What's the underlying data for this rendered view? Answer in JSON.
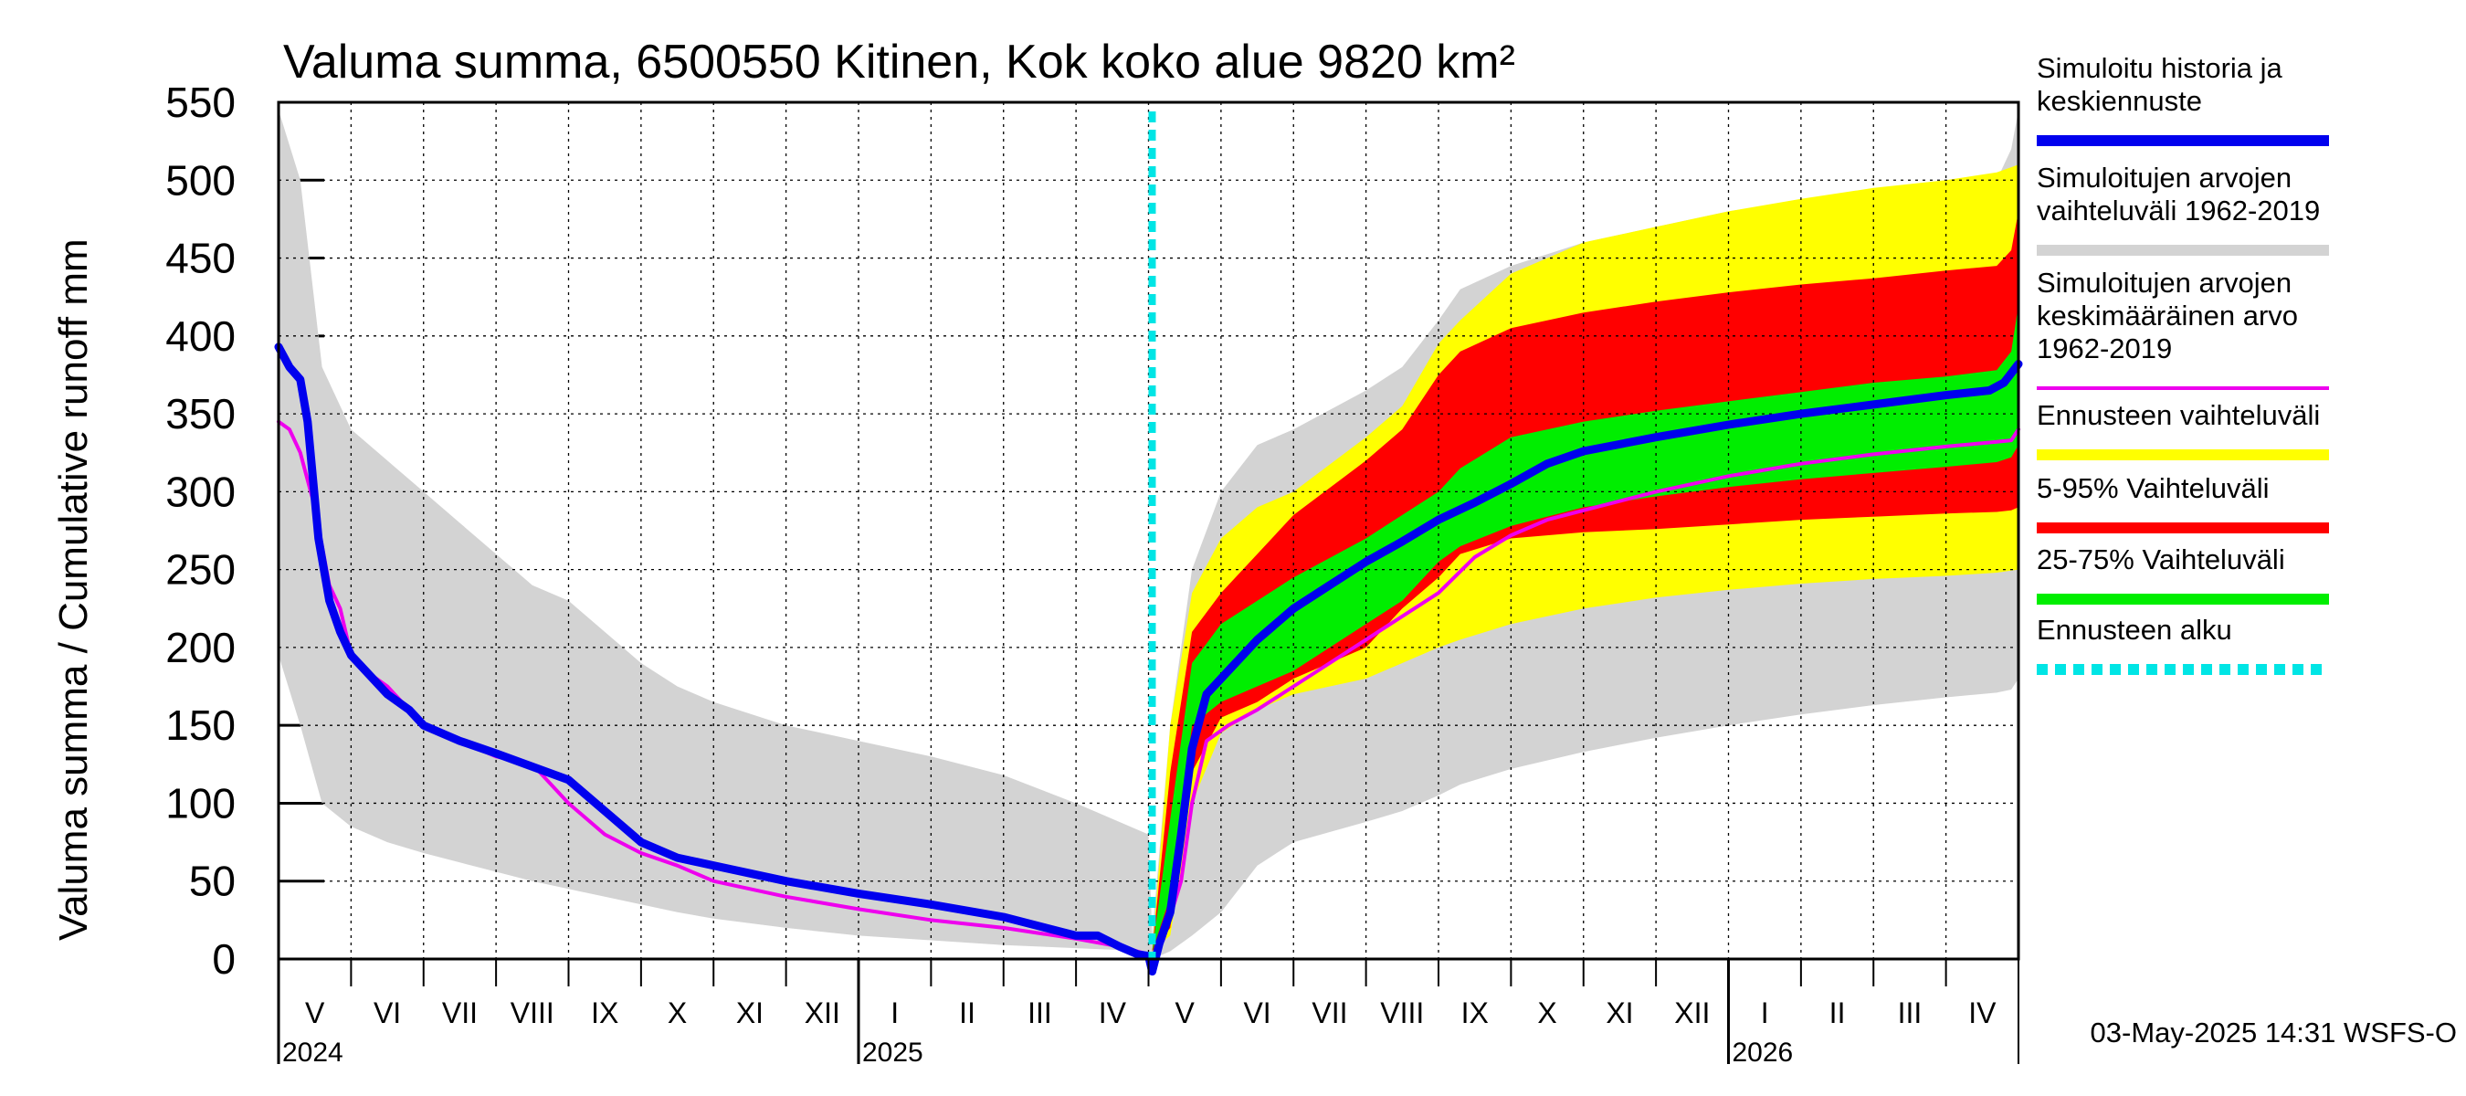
{
  "chart_data": {
    "type": "area",
    "title": "Valuma summa, 6500550 Kitinen, Kok koko alue 9820 km²",
    "ylabel": "Valuma summa / Cumulative runoff    mm",
    "ylim": [
      0,
      550
    ],
    "yticks": [
      "0",
      "50",
      "100",
      "150",
      "200",
      "250",
      "300",
      "350",
      "400",
      "450",
      "500",
      "550"
    ],
    "month_labels": [
      "V",
      "VI",
      "VII",
      "VIII",
      "IX",
      "X",
      "XI",
      "XII",
      "I",
      "II",
      "III",
      "IV",
      "V",
      "VI",
      "VII",
      "VIII",
      "IX",
      "X",
      "XI",
      "XII",
      "I",
      "II",
      "III",
      "IV"
    ],
    "year_labels": [
      {
        "label": "2024",
        "month_index": 0
      },
      {
        "label": "2025",
        "month_index": 8
      },
      {
        "label": "2026",
        "month_index": 20
      }
    ],
    "forecast_start_month": 12.05,
    "timestamp": "03-May-2025 14:31 WSFS-O",
    "colors": {
      "history_band": "#d3d3d3",
      "forecast_range": "#ffff00",
      "range_5_95": "#ff0000",
      "range_25_75": "#00ee00",
      "simulated": "#0000ee",
      "mean": "#ee00ee",
      "forecast_start": "#00e5e5"
    },
    "legend": [
      {
        "label_lines": [
          "Simuloitu historia ja",
          "keskiennuste"
        ],
        "color": "#0000ee",
        "style": "thick"
      },
      {
        "label_lines": [
          "Simuloitujen arvojen",
          "vaihteluväli 1962-2019"
        ],
        "color": "#d3d3d3",
        "style": "thick"
      },
      {
        "label_lines": [
          "Simuloitujen arvojen",
          "keskimääräinen arvo",
          "   1962-2019"
        ],
        "color": "#ee00ee",
        "style": "thin"
      },
      {
        "label_lines": [
          "Ennusteen vaihteluväli"
        ],
        "color": "#ffff00",
        "style": "thick"
      },
      {
        "label_lines": [
          "5-95% Vaihteluväli"
        ],
        "color": "#ff0000",
        "style": "thick"
      },
      {
        "label_lines": [
          "25-75% Vaihteluväli"
        ],
        "color": "#00ee00",
        "style": "thick"
      },
      {
        "label_lines": [
          "Ennusteen alku"
        ],
        "color": "#00e5e5",
        "style": "dashed"
      }
    ],
    "history_band": {
      "x": [
        0,
        0.3,
        0.6,
        1,
        1.5,
        2,
        2.5,
        3,
        3.5,
        4,
        4.5,
        5,
        5.5,
        6,
        7,
        8,
        9,
        10,
        11,
        12,
        12.05,
        12.3,
        12.6,
        13,
        13.5,
        14,
        15,
        15.5,
        16,
        16.3,
        17,
        18,
        19,
        20,
        21,
        22,
        23,
        23.7,
        23.9,
        24
      ],
      "upper": [
        545,
        500,
        380,
        340,
        320,
        300,
        280,
        260,
        240,
        230,
        210,
        190,
        175,
        165,
        150,
        140,
        130,
        118,
        100,
        80,
        15,
        150,
        250,
        300,
        330,
        340,
        365,
        380,
        410,
        430,
        445,
        460,
        470,
        480,
        487,
        493,
        498,
        500,
        520,
        545
      ],
      "lower": [
        195,
        150,
        100,
        85,
        75,
        68,
        62,
        56,
        50,
        45,
        40,
        35,
        30,
        26,
        20,
        15,
        12,
        9,
        7,
        5,
        0,
        5,
        15,
        30,
        60,
        75,
        88,
        95,
        105,
        112,
        122,
        133,
        142,
        150,
        157,
        163,
        168,
        171,
        173,
        180
      ]
    },
    "forecast_range": {
      "x": [
        12.05,
        12.3,
        12.6,
        13,
        13.5,
        14,
        15,
        15.5,
        16,
        16.3,
        17,
        18,
        19,
        20,
        21,
        22,
        23,
        23.7,
        24
      ],
      "upper": [
        5,
        150,
        235,
        270,
        290,
        300,
        335,
        355,
        395,
        410,
        440,
        460,
        470,
        480,
        488,
        495,
        500,
        505,
        510
      ],
      "lower": [
        5,
        15,
        100,
        145,
        160,
        170,
        180,
        190,
        200,
        205,
        215,
        225,
        232,
        237,
        241,
        244,
        246,
        248,
        250
      ]
    },
    "range_5_95": {
      "x": [
        12.05,
        12.3,
        12.6,
        13,
        13.5,
        14,
        15,
        15.5,
        16,
        16.3,
        17,
        18,
        19,
        20,
        21,
        22,
        23,
        23.7,
        23.9,
        24
      ],
      "upper": [
        5,
        120,
        210,
        235,
        260,
        285,
        320,
        340,
        375,
        390,
        405,
        415,
        422,
        428,
        433,
        437,
        442,
        445,
        455,
        480
      ],
      "lower": [
        5,
        20,
        120,
        155,
        165,
        180,
        200,
        225,
        245,
        260,
        270,
        274,
        276,
        279,
        282,
        284,
        286,
        287,
        288,
        290
      ]
    },
    "range_25_75": {
      "x": [
        12.05,
        12.3,
        12.6,
        13,
        13.5,
        14,
        15,
        15.5,
        16,
        16.3,
        17,
        18,
        19,
        20,
        21,
        22,
        23,
        23.7,
        23.9,
        24
      ],
      "upper": [
        5,
        90,
        190,
        215,
        230,
        245,
        270,
        285,
        300,
        315,
        335,
        345,
        352,
        358,
        364,
        370,
        374,
        378,
        390,
        420
      ],
      "lower": [
        5,
        40,
        150,
        165,
        175,
        185,
        215,
        230,
        255,
        265,
        278,
        290,
        297,
        303,
        308,
        312,
        316,
        319,
        322,
        330
      ]
    },
    "simulated": {
      "x": [
        0,
        0.15,
        0.3,
        0.4,
        0.55,
        0.7,
        0.85,
        1.0,
        1.2,
        1.5,
        1.8,
        2,
        2.5,
        3,
        4,
        4.5,
        5,
        5.5,
        6,
        7,
        8,
        9,
        10,
        11,
        11.3,
        11.6,
        11.85,
        12.0,
        12.05,
        12.15,
        12.3,
        12.45,
        12.6,
        12.8,
        13.1,
        13.5,
        14,
        14.5,
        15,
        15.5,
        16,
        16.5,
        17,
        17.5,
        18,
        19,
        20,
        21,
        22,
        23,
        23.6,
        23.8,
        24
      ],
      "values": [
        393,
        380,
        372,
        345,
        270,
        230,
        210,
        195,
        185,
        170,
        160,
        150,
        140,
        132,
        115,
        95,
        75,
        65,
        60,
        50,
        42,
        35,
        27,
        15,
        15,
        8,
        3,
        2,
        -8,
        10,
        30,
        80,
        135,
        170,
        185,
        205,
        225,
        240,
        255,
        268,
        282,
        293,
        305,
        318,
        326,
        335,
        343,
        350,
        356,
        362,
        365,
        370,
        382
      ]
    },
    "mean": {
      "x": [
        0,
        0.15,
        0.3,
        0.5,
        0.7,
        0.85,
        1.0,
        1.2,
        1.5,
        1.8,
        2,
        2.5,
        3,
        3.5,
        4,
        4.5,
        5,
        5.5,
        6,
        7,
        8,
        9,
        10,
        11,
        11.6,
        12.0,
        12.05,
        12.2,
        12.45,
        12.6,
        12.8,
        13.1,
        13.5,
        14,
        14.5,
        15,
        15.5,
        16,
        16.5,
        17,
        17.5,
        18,
        19,
        20,
        21,
        22,
        23,
        23.7,
        23.9,
        24
      ],
      "values": [
        345,
        340,
        325,
        290,
        240,
        225,
        195,
        185,
        175,
        160,
        150,
        140,
        130,
        125,
        100,
        80,
        68,
        60,
        50,
        40,
        32,
        25,
        20,
        13,
        8,
        3,
        2,
        12,
        50,
        100,
        140,
        150,
        160,
        175,
        190,
        205,
        220,
        235,
        258,
        272,
        282,
        288,
        300,
        310,
        318,
        324,
        329,
        332,
        333,
        340
      ]
    }
  }
}
